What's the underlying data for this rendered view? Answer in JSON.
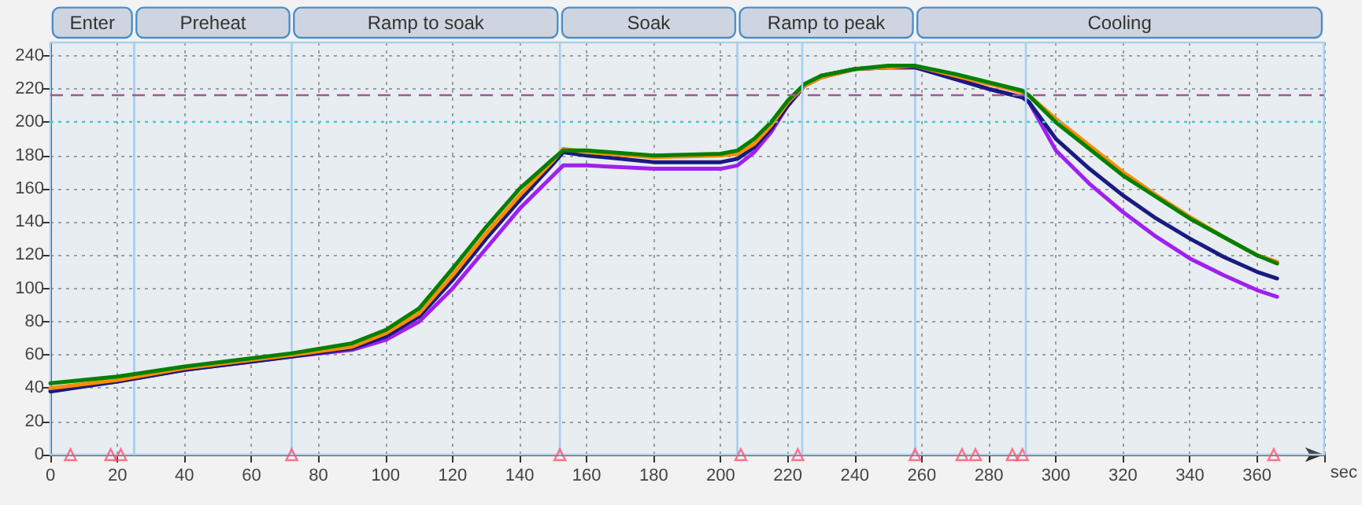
{
  "chart_data": {
    "type": "line",
    "xlabel": "sec",
    "xlim": [
      0,
      380
    ],
    "ylim": [
      0,
      248
    ],
    "xticks": [
      0,
      20,
      40,
      60,
      80,
      100,
      120,
      140,
      160,
      180,
      200,
      220,
      240,
      260,
      280,
      300,
      320,
      340,
      360,
      {
        "value": 380,
        "label": null
      }
    ],
    "yticks": [
      0,
      20,
      40,
      60,
      80,
      100,
      120,
      140,
      160,
      180,
      200,
      220,
      240
    ],
    "grid": true,
    "marker": "none",
    "line_style": "solid",
    "series": [
      {
        "color": "#a020f0",
        "x": [
          0,
          20,
          40,
          60,
          72,
          90,
          100,
          110,
          120,
          130,
          140,
          150,
          153,
          160,
          180,
          200,
          205,
          210,
          215,
          220,
          225,
          230,
          240,
          250,
          258,
          270,
          280,
          290,
          292,
          300,
          310,
          320,
          330,
          340,
          350,
          360,
          366
        ],
        "values": [
          39,
          44,
          51,
          56,
          59,
          63,
          69,
          80,
          100,
          124,
          148,
          168,
          174,
          174,
          172,
          172,
          174,
          182,
          194,
          210,
          222,
          228,
          232,
          233,
          233,
          226,
          220,
          215,
          212,
          183,
          163,
          146,
          131,
          118,
          108,
          99,
          95
        ]
      },
      {
        "color": "#1a1a80",
        "x": [
          0,
          20,
          40,
          60,
          72,
          90,
          100,
          110,
          120,
          130,
          140,
          150,
          153,
          160,
          180,
          200,
          205,
          210,
          215,
          220,
          225,
          230,
          240,
          250,
          258,
          270,
          280,
          290,
          292,
          300,
          310,
          320,
          330,
          340,
          350,
          360,
          366
        ],
        "values": [
          38,
          44,
          51,
          56,
          59,
          64,
          71,
          83,
          105,
          130,
          153,
          175,
          182,
          180,
          176,
          176,
          178,
          185,
          196,
          210,
          222,
          227,
          232,
          233,
          233,
          226,
          220,
          215,
          212,
          190,
          172,
          156,
          142,
          130,
          119,
          110,
          106
        ]
      },
      {
        "color": "#ff8c00",
        "x": [
          0,
          20,
          40,
          60,
          72,
          90,
          100,
          110,
          120,
          130,
          140,
          150,
          153,
          160,
          180,
          200,
          205,
          210,
          215,
          220,
          225,
          230,
          240,
          250,
          258,
          270,
          280,
          290,
          292,
          300,
          310,
          320,
          330,
          340,
          350,
          360,
          366
        ],
        "values": [
          40,
          45,
          52,
          57,
          60,
          65,
          73,
          85,
          108,
          133,
          156,
          177,
          184,
          182,
          179,
          180,
          181,
          187,
          198,
          212,
          222,
          227,
          232,
          233,
          234,
          228,
          223,
          218,
          216,
          202,
          186,
          170,
          156,
          143,
          131,
          120,
          116
        ]
      },
      {
        "color": "#008000",
        "x": [
          0,
          20,
          40,
          60,
          72,
          90,
          100,
          110,
          120,
          130,
          140,
          150,
          153,
          160,
          180,
          200,
          205,
          210,
          215,
          220,
          225,
          230,
          240,
          250,
          258,
          270,
          280,
          290,
          292,
          300,
          310,
          320,
          330,
          340,
          350,
          360,
          366
        ],
        "values": [
          43,
          47,
          53,
          58,
          61,
          67,
          75,
          88,
          112,
          137,
          160,
          178,
          183,
          183,
          180,
          181,
          183,
          190,
          200,
          213,
          223,
          228,
          232,
          234,
          234,
          229,
          224,
          219,
          216,
          200,
          184,
          168,
          155,
          142,
          131,
          120,
          115
        ]
      },
      {
        "type": "scatter",
        "marker": "triangle",
        "color": "#ff5070",
        "x": [
          6,
          18,
          21,
          72,
          152,
          206,
          223,
          258,
          272,
          276,
          287,
          290,
          365
        ],
        "values": [
          0,
          0,
          0,
          0,
          0,
          0,
          0,
          0,
          0,
          0,
          0,
          0,
          0
        ]
      }
    ],
    "bands": [
      {
        "axis": "x",
        "from": 0,
        "to": 25,
        "label": "Enter",
        "color": "#a8d0ee"
      },
      {
        "axis": "x",
        "from": 25,
        "to": 72,
        "label": "Preheat",
        "color": "#a8d0ee"
      },
      {
        "axis": "x",
        "from": 72,
        "to": 152,
        "label": "Ramp to soak",
        "color": "#a8d0ee"
      },
      {
        "axis": "x",
        "from": 152,
        "to": 205,
        "label": "Soak",
        "color": "#a8d0ee"
      },
      {
        "axis": "x",
        "from": 205,
        "to": 258,
        "label": "Ramp to peak",
        "color": "#a8d0ee"
      },
      {
        "axis": "x",
        "from": 258,
        "to": 380,
        "label": "Cooling",
        "color": "#a8d0ee"
      }
    ],
    "ref_lines": [
      {
        "axis": "y",
        "value": 217,
        "color": "#a05a90",
        "line_style": "dashed"
      },
      {
        "axis": "y",
        "value": 200,
        "color": "#40d0d0",
        "line_style": "dotted"
      },
      {
        "axis": "x",
        "value": 224,
        "color": "#a8d0ee",
        "line_style": "solid"
      },
      {
        "axis": "x",
        "value": 291,
        "color": "#a8d0ee",
        "line_style": "solid"
      }
    ]
  }
}
